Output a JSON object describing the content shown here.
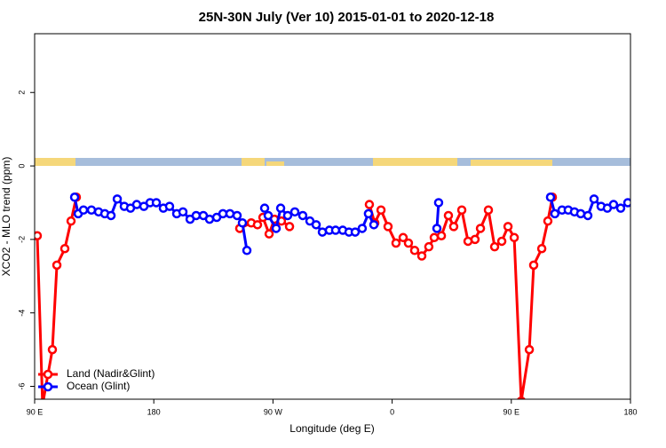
{
  "chart_data": {
    "type": "line",
    "title": "25N-30N July (Ver 10)   2015-01-01 to 2020-12-18",
    "x_label": "Longitude (deg E)",
    "y_label": "XCO2 - MLO trend (ppm)",
    "xlim": [
      90,
      540
    ],
    "ylim": [
      -6.35,
      3.6
    ],
    "xticks": [
      {
        "value": 90,
        "label": "90 E"
      },
      180,
      {
        "value": 270,
        "label": "90 W"
      },
      {
        "value": 360,
        "label": "0"
      },
      {
        "value": 450,
        "label": "90 E"
      },
      {
        "value": 540,
        "label": "180"
      }
    ],
    "yticks": [
      -6,
      -4,
      -2,
      0,
      2
    ],
    "legend": "bottom-left",
    "series": [
      {
        "name": "Land (Nadir&Glint)",
        "color": "#ff0000",
        "x": [
          92.0,
          96.0,
          103.4,
          106.8,
          112.8,
          117.5,
          121.5,
          null,
          244.9,
          253.6,
          258.3,
          262.4,
          267.1,
          271.1,
          276.4,
          282.5,
          null,
          342.8,
          346.9,
          351.6,
          356.9,
          362.9,
          368.3,
          372.3,
          377.0,
          382.4,
          387.7,
          391.8,
          397.2,
          402.5,
          406.5,
          412.6,
          417.3,
          422.6,
          426.7,
          432.7,
          437.4,
          442.8,
          447.5,
          452.2,
          457.5,
          463.6,
          466.9,
          473.0,
          477.6,
          481.0
        ],
        "values": [
          -1.9,
          -6.5,
          -5.0,
          -2.7,
          -2.25,
          -1.5,
          -0.85,
          null,
          -1.7,
          -1.55,
          -1.6,
          -1.4,
          -1.85,
          -1.45,
          -1.5,
          -1.65,
          null,
          -1.05,
          -1.55,
          -1.2,
          -1.65,
          -2.1,
          -1.95,
          -2.1,
          -2.3,
          -2.45,
          -2.2,
          -1.95,
          -1.9,
          -1.35,
          -1.65,
          -1.2,
          -2.05,
          -2.0,
          -1.7,
          -1.2,
          -2.2,
          -2.05,
          -1.65,
          -1.95,
          -6.4,
          -5.0,
          -2.7,
          -2.25,
          -1.5,
          -0.85
        ]
      },
      {
        "name": "Ocean (Glint)",
        "color": "#0000ff",
        "x": [
          120.2,
          122.9,
          126.9,
          132.9,
          138.3,
          143.0,
          147.7,
          152.4,
          157.7,
          162.4,
          167.1,
          172.5,
          177.2,
          181.9,
          187.2,
          191.9,
          197.3,
          202.0,
          207.4,
          212.0,
          217.4,
          222.1,
          227.5,
          232.2,
          237.5,
          242.9,
          246.9,
          250.3,
          null,
          263.7,
          266.4,
          272.4,
          275.8,
          281.1,
          286.5,
          292.5,
          297.9,
          302.6,
          307.3,
          312.6,
          317.3,
          322.7,
          327.4,
          332.1,
          337.4,
          342.1,
          346.2,
          null,
          393.8,
          395.1,
          null,
          479.6,
          482.9,
          488.3,
          493.0,
          497.7,
          502.4,
          507.8,
          512.5,
          517.8,
          522.5,
          527.2,
          532.6,
          538.0
        ],
        "values": [
          -0.85,
          -1.3,
          -1.2,
          -1.2,
          -1.25,
          -1.3,
          -1.35,
          -0.9,
          -1.1,
          -1.15,
          -1.05,
          -1.1,
          -1.0,
          -1.0,
          -1.15,
          -1.1,
          -1.3,
          -1.25,
          -1.45,
          -1.35,
          -1.35,
          -1.45,
          -1.4,
          -1.3,
          -1.3,
          -1.35,
          -1.55,
          -2.3,
          null,
          -1.15,
          -1.35,
          -1.7,
          -1.15,
          -1.35,
          -1.25,
          -1.35,
          -1.5,
          -1.6,
          -1.8,
          -1.75,
          -1.75,
          -1.75,
          -1.8,
          -1.8,
          -1.7,
          -1.3,
          -1.6,
          null,
          -1.7,
          -1.0,
          null,
          -0.85,
          -1.3,
          -1.2,
          -1.2,
          -1.25,
          -1.3,
          -1.35,
          -0.9,
          -1.1,
          -1.15,
          -1.05,
          -1.15,
          -1.0
        ]
      }
    ]
  }
}
